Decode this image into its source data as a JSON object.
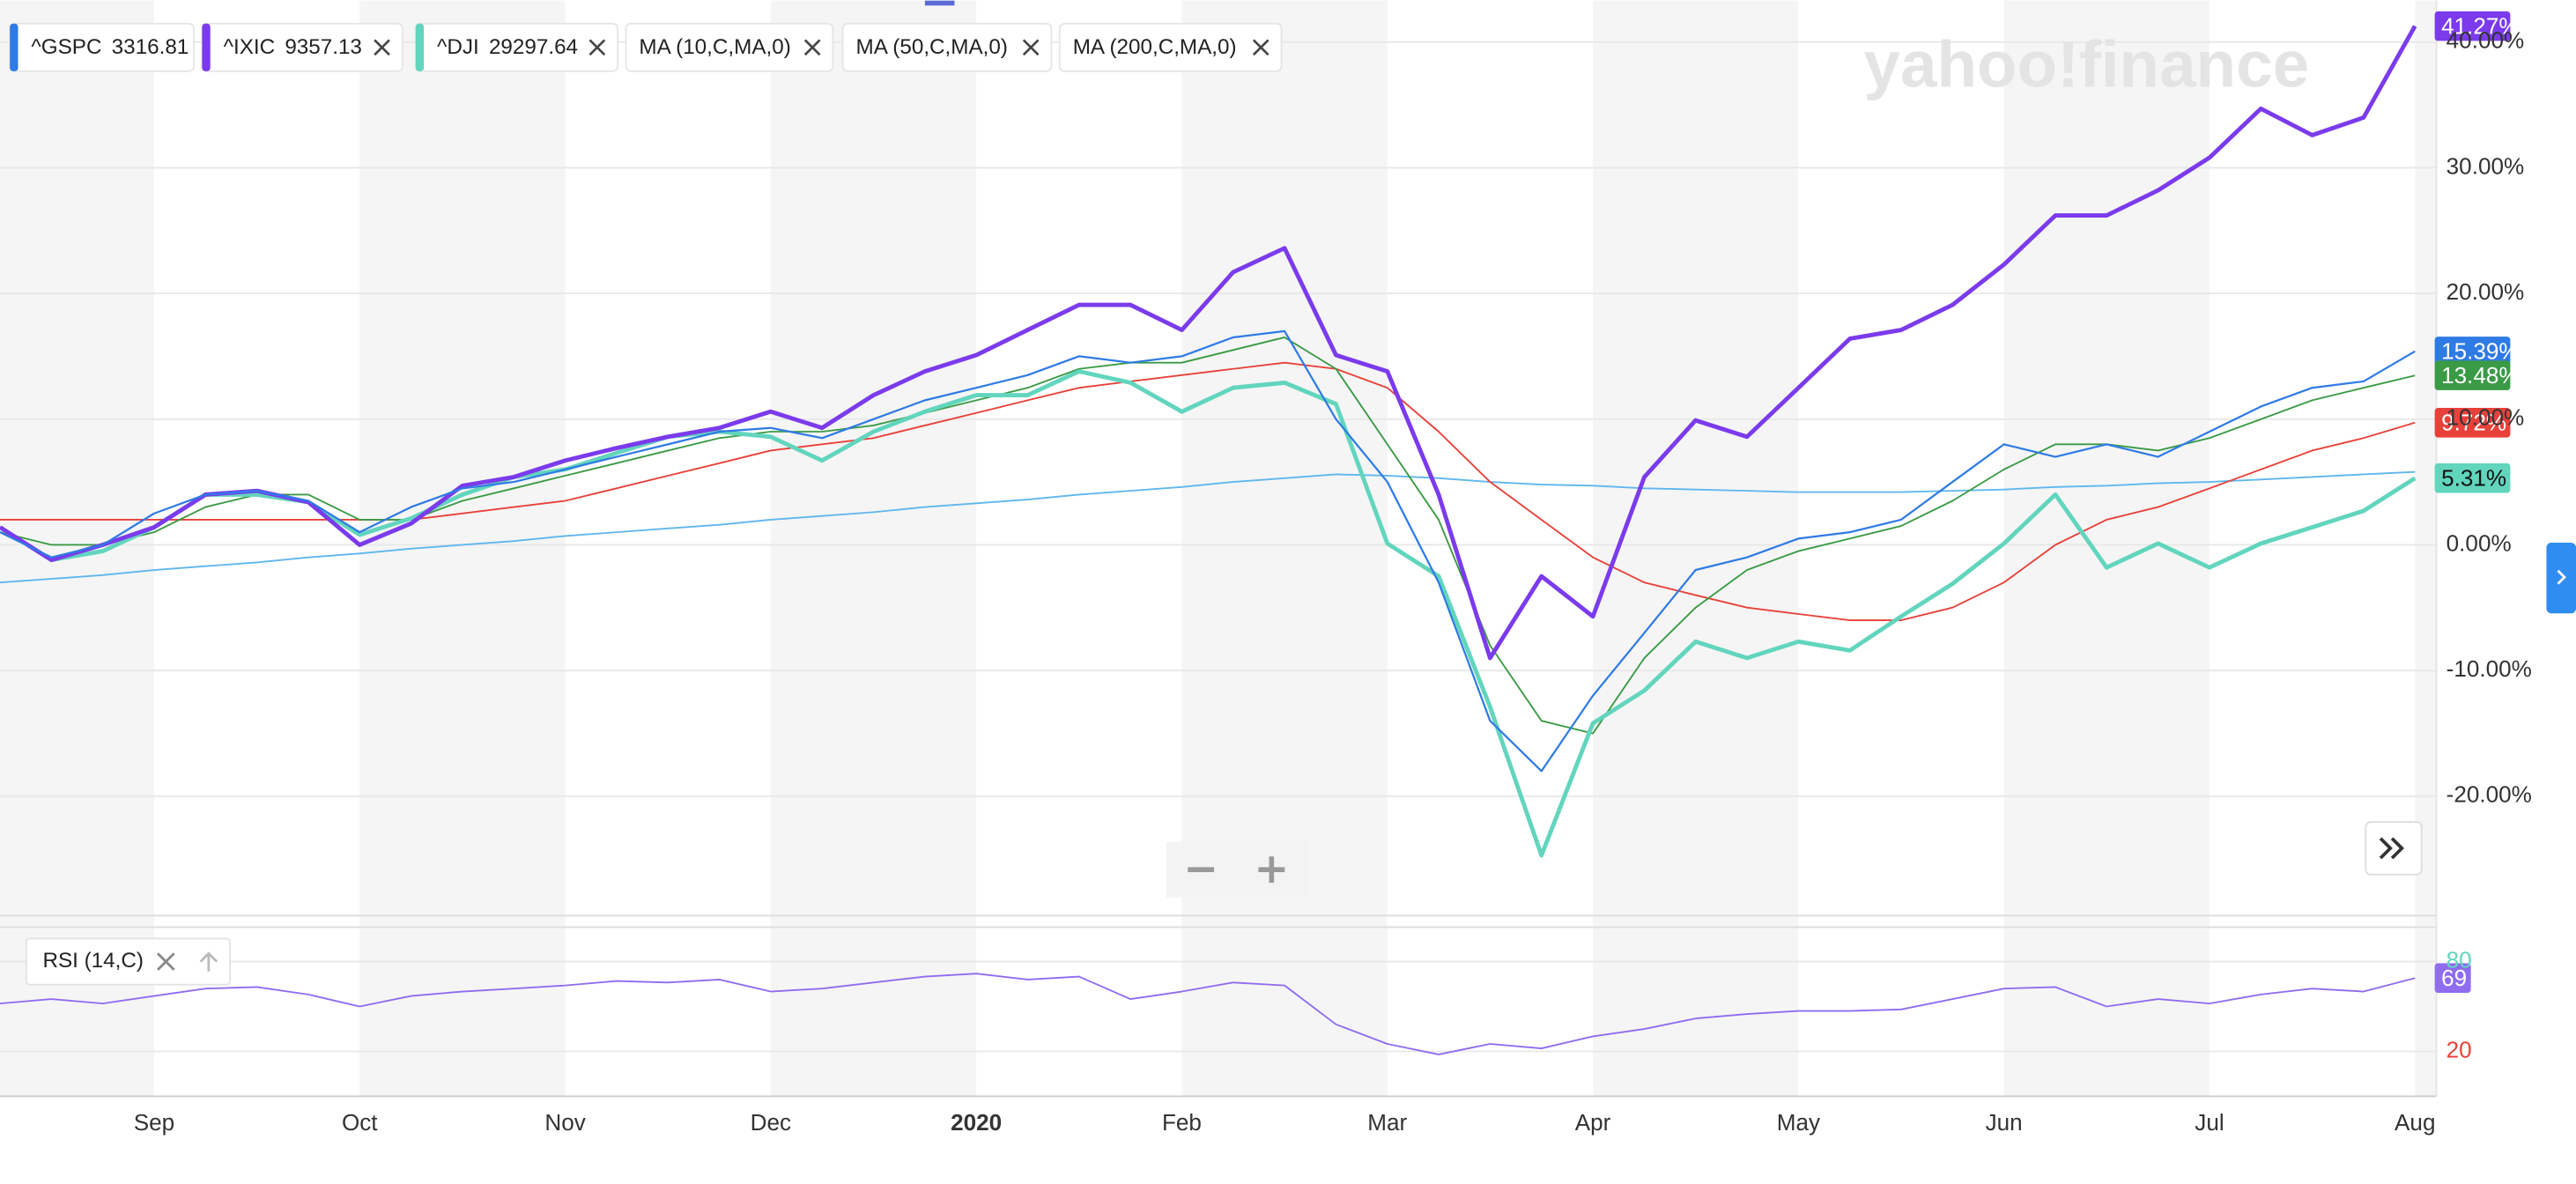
{
  "chart_data": [
    {
      "type": "line",
      "watermark": "yahoo!finance",
      "categories": [
        null,
        null,
        null,
        "Sep",
        null,
        null,
        null,
        "Oct",
        null,
        null,
        null,
        "Nov",
        null,
        null,
        null,
        "Dec",
        null,
        null,
        null,
        "2020",
        null,
        null,
        null,
        "Feb",
        null,
        null,
        null,
        "Mar",
        null,
        null,
        null,
        "Apr",
        null,
        null,
        null,
        "May",
        null,
        null,
        null,
        "Jun",
        null,
        null,
        null,
        "Jul",
        null,
        null,
        null,
        "Aug"
      ],
      "ylim": [
        -29.5,
        43.3
      ],
      "yticks": [
        {
          "value": -20,
          "label": "-20.00%"
        },
        {
          "value": -10,
          "label": "-10.00%"
        },
        {
          "value": 0,
          "label": "0.00%"
        },
        {
          "value": 10,
          "label": "10.00%"
        },
        {
          "value": 20,
          "label": "20.00%"
        },
        {
          "value": 30,
          "label": "30.00%"
        },
        {
          "value": 40,
          "label": "40.00%"
        }
      ],
      "grid": true,
      "series": [
        {
          "name": "^GSPC",
          "legend_value": 3316.81,
          "color": "#2f7be5",
          "values": [
            1,
            -1,
            0,
            2.5,
            4,
            4.3,
            3.5,
            1,
            3,
            4.5,
            5,
            6,
            7,
            8,
            9,
            9.3,
            8.5,
            10,
            11.5,
            12.5,
            13.5,
            15,
            14.5,
            15,
            16.5,
            17,
            10,
            5,
            -3,
            -14,
            -18,
            -12,
            -7,
            -2,
            -1,
            0.5,
            1,
            2,
            5,
            8,
            7,
            8,
            7,
            9,
            11,
            12.5,
            13,
            15.39
          ],
          "value_labels": [
            null,
            null,
            null,
            null,
            null,
            null,
            null,
            null,
            null,
            null,
            null,
            null,
            null,
            null,
            null,
            null,
            null,
            null,
            null,
            null,
            null,
            null,
            null,
            null,
            null,
            null,
            null,
            null,
            null,
            null,
            null,
            null,
            null,
            null,
            null,
            null,
            null,
            null,
            null,
            null,
            null,
            null,
            null,
            null,
            null,
            null,
            null,
            "15.39%"
          ]
        },
        {
          "name": "^IXIC",
          "legend_value": 9357.13,
          "color": "#7b3bec",
          "values": [
            1.4,
            -1.2,
            0,
            1.4,
            4,
            4.3,
            3.4,
            0,
            1.7,
            4.7,
            5.4,
            6.7,
            7.7,
            8.6,
            9.3,
            10.6,
            9.3,
            11.9,
            13.8,
            15.1,
            17.1,
            19.1,
            19.1,
            17.1,
            21.7,
            23.6,
            15.1,
            13.8,
            4,
            -9,
            -2.5,
            -5.7,
            5.4,
            9.9,
            8.6,
            12.5,
            16.4,
            17.1,
            19.1,
            22.3,
            26.2,
            26.2,
            28.2,
            30.8,
            34.7,
            32.6,
            34,
            41.27
          ],
          "value_labels": [
            null,
            null,
            null,
            null,
            null,
            null,
            null,
            null,
            null,
            null,
            null,
            null,
            null,
            null,
            null,
            null,
            null,
            null,
            null,
            null,
            null,
            null,
            null,
            null,
            null,
            null,
            null,
            null,
            null,
            null,
            null,
            null,
            null,
            null,
            null,
            null,
            null,
            null,
            null,
            null,
            null,
            null,
            null,
            null,
            null,
            null,
            null,
            "41.27%"
          ]
        },
        {
          "name": "^DJI",
          "legend_value": 29297.64,
          "color": "#62d5bd",
          "values": [
            1.4,
            -1.2,
            -0.5,
            1.4,
            4,
            4,
            3.4,
            0.8,
            2.1,
            4,
            5.4,
            6,
            7.3,
            8.6,
            9,
            8.6,
            6.7,
            9,
            10.6,
            11.9,
            11.9,
            13.8,
            12.9,
            10.6,
            12.5,
            12.9,
            11.2,
            0.1,
            -2.5,
            -12.9,
            -24.7,
            -14.2,
            -11.6,
            -7.7,
            -9,
            -7.7,
            -8.4,
            -5.7,
            -3.1,
            0.1,
            4,
            -1.8,
            0.1,
            -1.8,
            0.1,
            1.4,
            2.7,
            5.31
          ],
          "value_labels": [
            null,
            null,
            null,
            null,
            null,
            null,
            null,
            null,
            null,
            null,
            null,
            null,
            null,
            null,
            null,
            null,
            null,
            null,
            null,
            null,
            null,
            null,
            null,
            null,
            null,
            null,
            null,
            null,
            null,
            null,
            null,
            null,
            null,
            null,
            null,
            null,
            null,
            null,
            null,
            null,
            null,
            null,
            null,
            null,
            null,
            null,
            null,
            "5.31%"
          ]
        },
        {
          "name": "MA (10,C,MA,0)",
          "color": "#3a9a45",
          "values": [
            1,
            0,
            0,
            1,
            3,
            4,
            4,
            2,
            2,
            3.5,
            4.5,
            5.5,
            6.5,
            7.5,
            8.5,
            9,
            9,
            9.5,
            10.5,
            11.5,
            12.5,
            14,
            14.5,
            14.5,
            15.5,
            16.5,
            14,
            8,
            2,
            -8,
            -14,
            -15,
            -9,
            -5,
            -2,
            -0.5,
            0.5,
            1.5,
            3.5,
            6,
            8,
            8,
            7.5,
            8.5,
            10,
            11.5,
            12.5,
            13.48
          ],
          "value_labels": [
            null,
            null,
            null,
            null,
            null,
            null,
            null,
            null,
            null,
            null,
            null,
            null,
            null,
            null,
            null,
            null,
            null,
            null,
            null,
            null,
            null,
            null,
            null,
            null,
            null,
            null,
            null,
            null,
            null,
            null,
            null,
            null,
            null,
            null,
            null,
            null,
            null,
            null,
            null,
            null,
            null,
            null,
            null,
            null,
            null,
            null,
            null,
            "13.48%"
          ]
        },
        {
          "name": "MA (50,C,MA,0)",
          "color": "#e8413a",
          "values": [
            2,
            2,
            2,
            2,
            2,
            2,
            2,
            2,
            2,
            2.5,
            3,
            3.5,
            4.5,
            5.5,
            6.5,
            7.5,
            8,
            8.5,
            9.5,
            10.5,
            11.5,
            12.5,
            13,
            13.5,
            14,
            14.5,
            14,
            12.5,
            9,
            5,
            2,
            -1,
            -3,
            -4,
            -5,
            -5.5,
            -6,
            -6,
            -5,
            -3,
            0,
            2,
            3,
            4.5,
            6,
            7.5,
            8.5,
            9.72
          ],
          "value_labels": [
            null,
            null,
            null,
            null,
            null,
            null,
            null,
            null,
            null,
            null,
            null,
            null,
            null,
            null,
            null,
            null,
            null,
            null,
            null,
            null,
            null,
            null,
            null,
            null,
            null,
            null,
            null,
            null,
            null,
            null,
            null,
            null,
            null,
            null,
            null,
            null,
            null,
            null,
            null,
            null,
            null,
            null,
            null,
            null,
            null,
            null,
            null,
            "9.72%"
          ]
        },
        {
          "name": "MA (200,C,MA,0)",
          "color": "#5fb6ee",
          "values": [
            -3,
            -2.7,
            -2.4,
            -2,
            -1.7,
            -1.4,
            -1,
            -0.7,
            -0.3,
            0,
            0.3,
            0.7,
            1,
            1.3,
            1.6,
            2,
            2.3,
            2.6,
            3,
            3.3,
            3.6,
            4,
            4.3,
            4.6,
            5,
            5.3,
            5.6,
            5.5,
            5.3,
            5,
            4.8,
            4.7,
            4.5,
            4.4,
            4.3,
            4.2,
            4.2,
            4.2,
            4.3,
            4.4,
            4.6,
            4.7,
            4.9,
            5,
            5.2,
            5.4,
            5.6,
            5.8
          ]
        }
      ]
    },
    {
      "type": "line",
      "title": "RSI (14,C)",
      "ylim": [
        -10,
        103
      ],
      "yticks": [
        20,
        80
      ],
      "series": [
        {
          "name": "RSI",
          "color": "#8f6cf0",
          "values": [
            52,
            55,
            52,
            57,
            62,
            63,
            58,
            50,
            57,
            60,
            62,
            64,
            67,
            66,
            68,
            60,
            62,
            66,
            70,
            72,
            68,
            70,
            55,
            60,
            66,
            64,
            38,
            25,
            18,
            25,
            22,
            30,
            35,
            42,
            45,
            47,
            47,
            48,
            55,
            62,
            63,
            50,
            55,
            52,
            58,
            62,
            60,
            69
          ],
          "value_labels": [
            null,
            null,
            null,
            null,
            null,
            null,
            null,
            null,
            null,
            null,
            null,
            null,
            null,
            null,
            null,
            null,
            null,
            null,
            null,
            null,
            null,
            null,
            null,
            null,
            null,
            null,
            null,
            null,
            null,
            null,
            null,
            null,
            null,
            null,
            null,
            null,
            null,
            null,
            null,
            null,
            null,
            null,
            null,
            null,
            null,
            null,
            null,
            "69"
          ]
        }
      ]
    }
  ]
}
